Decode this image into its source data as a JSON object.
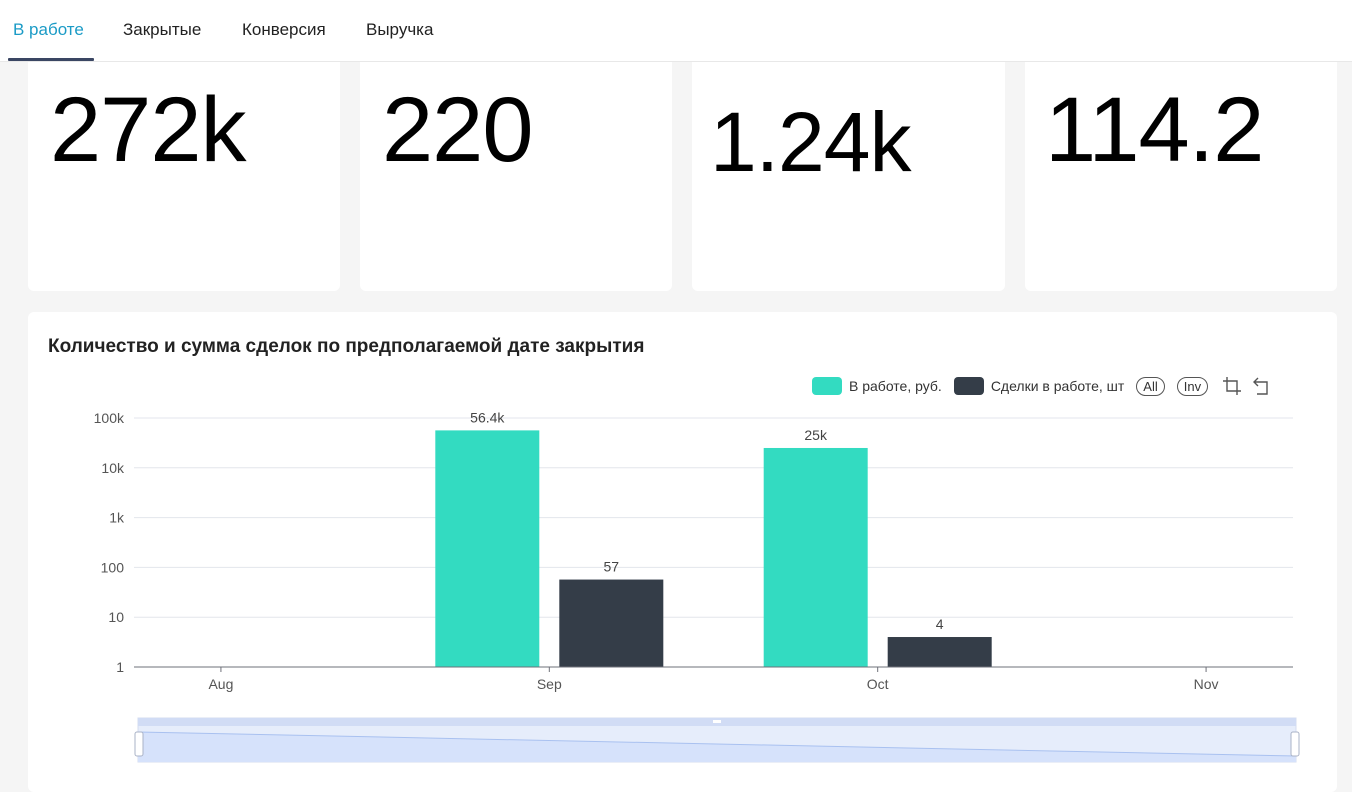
{
  "tabs": [
    {
      "label": "В работе",
      "active": true
    },
    {
      "label": "Закрытые",
      "active": false
    },
    {
      "label": "Конверсия",
      "active": false
    },
    {
      "label": "Выручка",
      "active": false
    }
  ],
  "kpis": [
    {
      "value": "272k"
    },
    {
      "value": "220"
    },
    {
      "value": "1.24k"
    },
    {
      "value": "114.2"
    }
  ],
  "chart": {
    "tools": {
      "all": "All",
      "inv": "Inv",
      "zoom_icon": "crop-zoom-icon",
      "reset_icon": "reset-icon"
    }
  },
  "chart_data": {
    "type": "bar",
    "title": "Количество и сумма сделок по предполагаемой дате закрытия",
    "categories": [
      "Aug",
      "Sep",
      "Oct",
      "Nov"
    ],
    "series": [
      {
        "name": "В работе, руб.",
        "color": "#33dbc1",
        "values": [
          null,
          56400,
          25000,
          null
        ],
        "labels": [
          "",
          "56.4k",
          "25k",
          ""
        ]
      },
      {
        "name": "Сделки в работе, шт",
        "color": "#343d48",
        "values": [
          null,
          57,
          4,
          null
        ],
        "labels": [
          "",
          "57",
          "4",
          ""
        ]
      }
    ],
    "y_scale": "log",
    "ylim": [
      1,
      100000
    ],
    "y_ticks": [
      1,
      10,
      100,
      1000,
      10000,
      100000
    ],
    "y_tick_labels": [
      "1",
      "10",
      "100",
      "1k",
      "10k",
      "100k"
    ],
    "legend_position": "top-right",
    "grid": true,
    "xlabel": "",
    "ylabel": "",
    "has_datazoom": true
  }
}
